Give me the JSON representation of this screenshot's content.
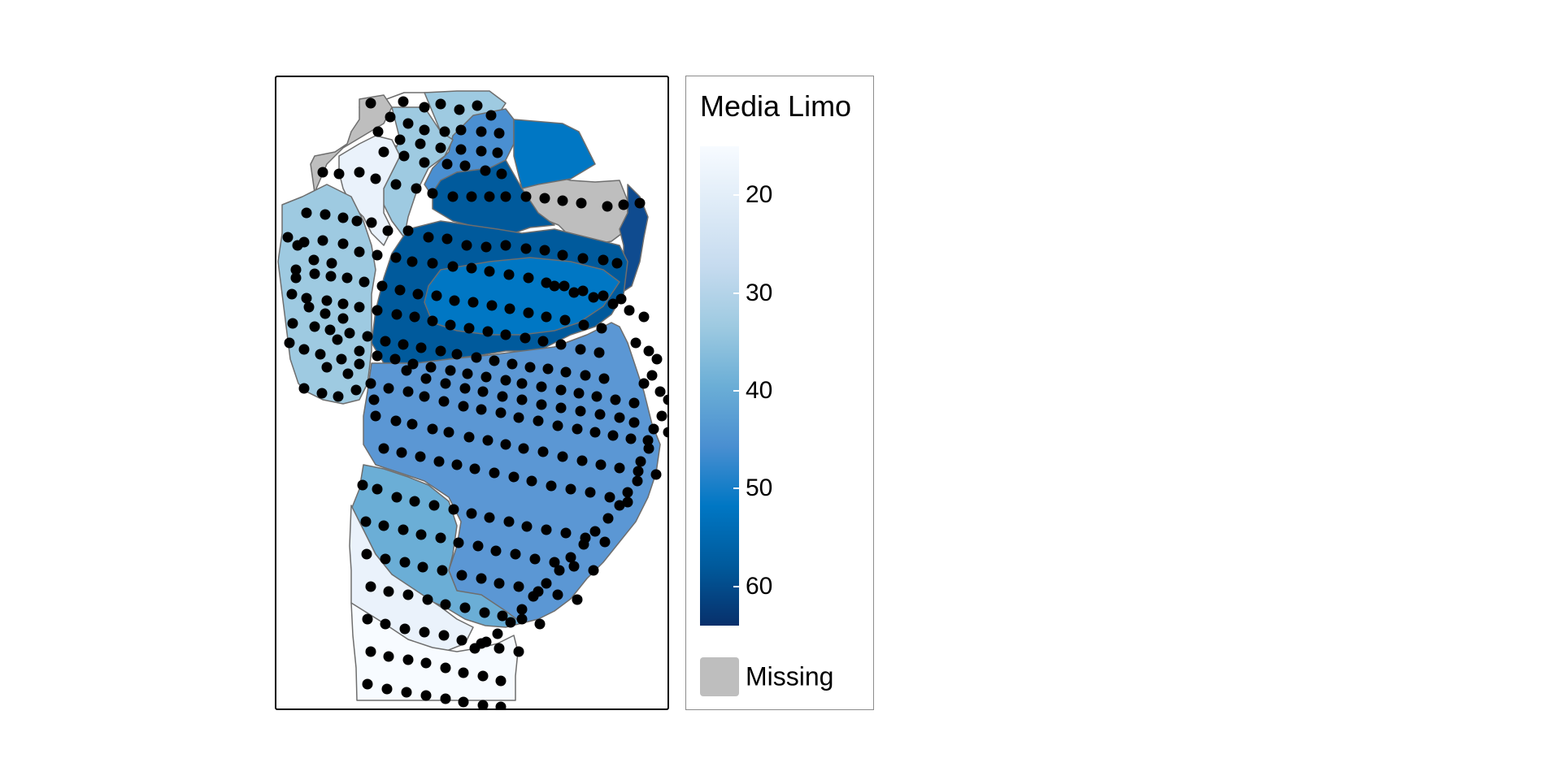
{
  "legend": {
    "title": "Media Limo",
    "ticks": [
      "20",
      "30",
      "40",
      "50",
      "60"
    ],
    "tick_values": [
      20,
      30,
      40,
      50,
      60
    ],
    "scale_min": 15,
    "scale_max": 64,
    "missing_label": "Missing",
    "missing_color": "#bebebe",
    "gradient_colors": [
      "#f7fbff",
      "#deebf7",
      "#c6dbef",
      "#9ecae1",
      "#6baed6",
      "#4a8fd1",
      "#0077c4",
      "#005a9c",
      "#08306b"
    ]
  },
  "map": {
    "border_color": "#6e6e6e",
    "point_color": "#000000"
  }
}
